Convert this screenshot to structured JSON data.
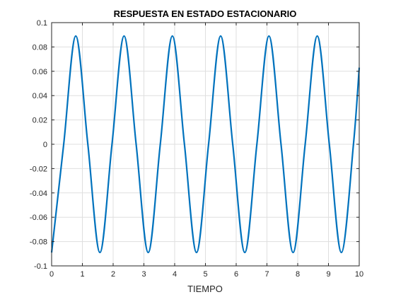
{
  "chart_data": {
    "type": "line",
    "title": "RESPUESTA EN ESTADO ESTACIONARIO",
    "xlabel": "TIEMPO",
    "ylabel": "",
    "xlim": [
      0,
      10
    ],
    "ylim": [
      -0.1,
      0.1
    ],
    "xticks": [
      0,
      1,
      2,
      3,
      4,
      5,
      6,
      7,
      8,
      9,
      10
    ],
    "xtick_labels": [
      "0",
      "1",
      "2",
      "3",
      "4",
      "5",
      "6",
      "7",
      "8",
      "9",
      "10"
    ],
    "yticks": [
      -0.1,
      -0.08,
      -0.06,
      -0.04,
      -0.02,
      0,
      0.02,
      0.04,
      0.06,
      0.08,
      0.1
    ],
    "ytick_labels": [
      "-0.1",
      "-0.08",
      "-0.06",
      "-0.04",
      "-0.02",
      "0",
      "0.02",
      "0.04",
      "0.06",
      "0.08",
      "0.1"
    ],
    "grid": true,
    "legend": "none",
    "series": [
      {
        "color": "#0072bd",
        "x": [
          0,
          0.3925,
          0.785,
          1.1775,
          1.57,
          1.9625,
          2.355,
          2.7475,
          3.14,
          3.5325,
          3.925,
          4.3175,
          4.71,
          5.1025,
          5.495,
          5.8875,
          6.28,
          6.6725,
          7.065,
          7.4575,
          7.85,
          8.2425,
          8.635,
          9.0275,
          9.42,
          9.8125,
          10
        ],
        "y": [
          -0.089,
          0,
          0.089,
          0,
          -0.089,
          0,
          0.089,
          0,
          -0.089,
          0,
          0.089,
          0,
          -0.089,
          0,
          0.089,
          0,
          -0.089,
          0,
          0.089,
          0,
          -0.089,
          0,
          0.089,
          0,
          -0.089,
          0,
          0.063
        ]
      }
    ]
  }
}
